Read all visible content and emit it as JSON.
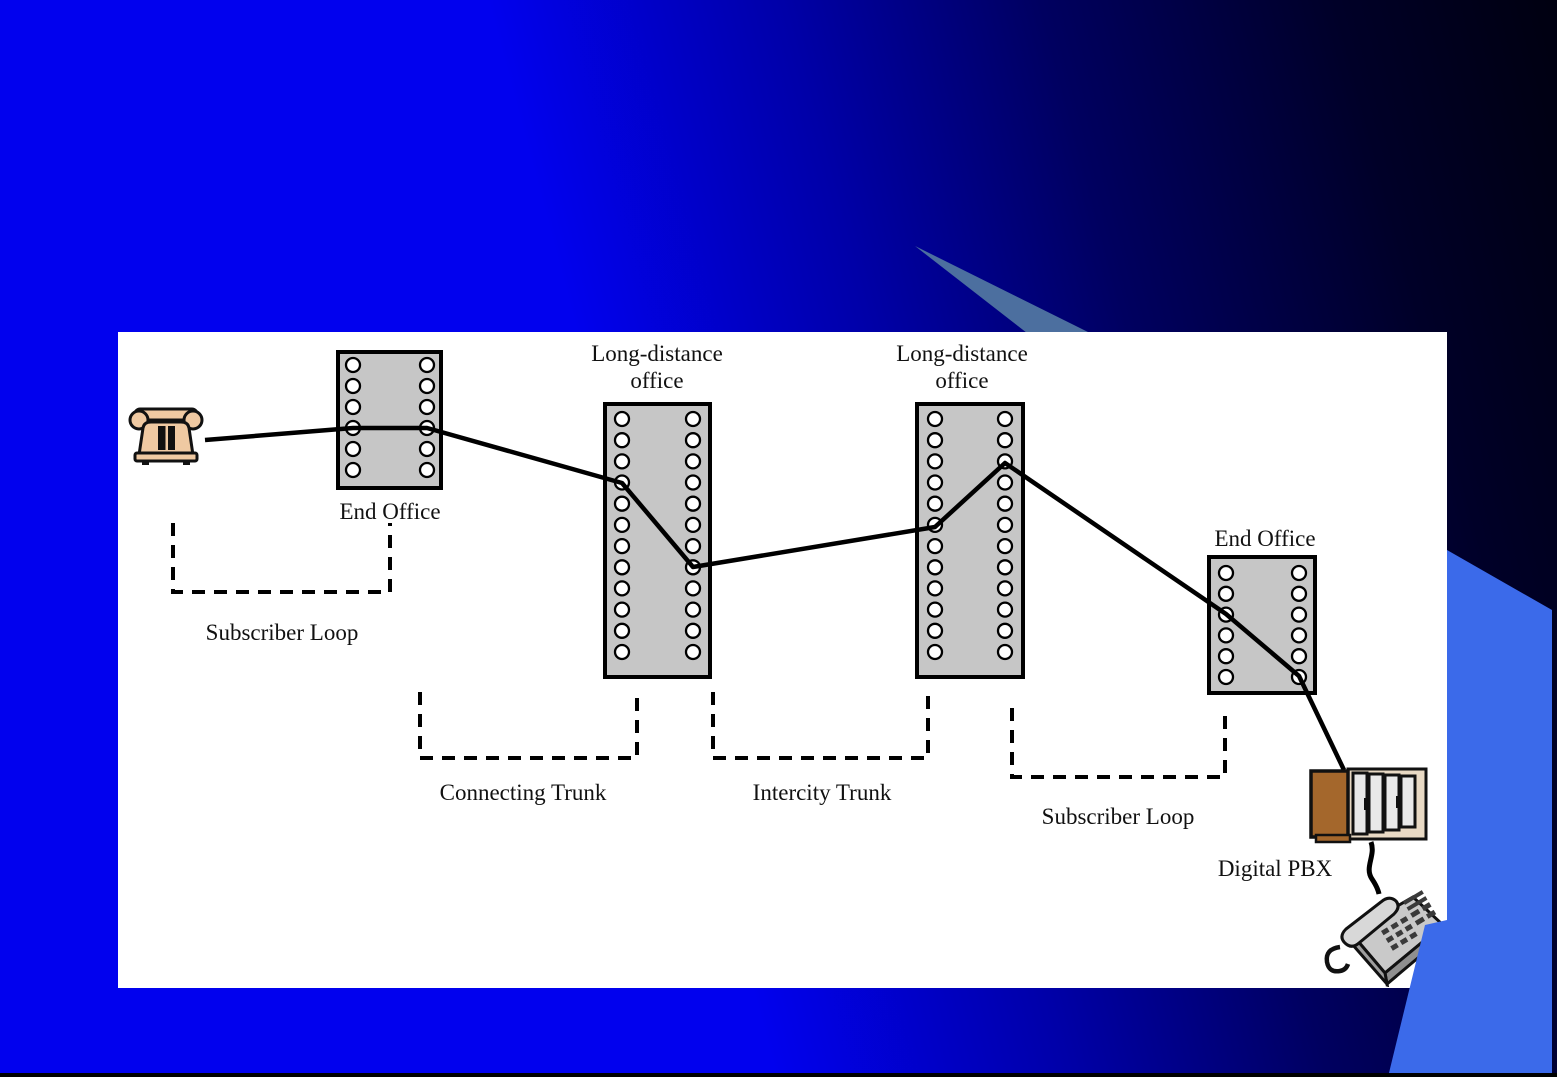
{
  "slide": {
    "type": "presentation-slide",
    "diagram": {
      "stations": {
        "end_office_1": {
          "label": "End Office"
        },
        "long_distance_office_1": {
          "line1": "Long-distance",
          "line2": "office"
        },
        "long_distance_office_2": {
          "line1": "Long-distance",
          "line2": "office"
        },
        "end_office_2": {
          "label": "End Office"
        },
        "digital_pbx": {
          "label": "Digital PBX"
        }
      },
      "links": {
        "subscriber_loop_1": "Subscriber Loop",
        "connecting_trunk": "Connecting Trunk",
        "intercity_trunk": "Intercity Trunk",
        "subscriber_loop_2": "Subscriber Loop"
      },
      "icons": {
        "left_phone": "rotary-telephone-icon",
        "pbx_cabinet": "digital-pbx-cabinet-icon",
        "desk_phone": "office-telephone-icon"
      },
      "colors": {
        "panel": "#ffffff",
        "switch_box_fill": "#c6c6c6",
        "switch_port_fill": "#ffffff",
        "line": "#000000",
        "background_left": "#0101ee",
        "background_right": "#000010",
        "beam": "#4c6f9f",
        "right_wedge": "#3b6aea",
        "phone_tan": "#efc9a2",
        "pbx_brown": "#a4672c",
        "desk_phone_gray": "#c9c9c9"
      }
    }
  }
}
